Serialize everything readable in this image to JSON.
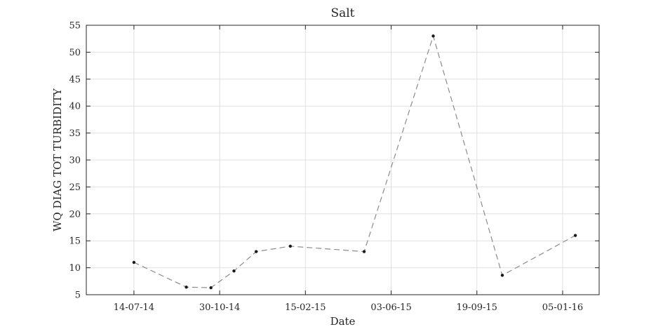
{
  "chart_data": {
    "type": "line",
    "title": "Salt",
    "xlabel": "Date",
    "ylabel": "WQ DIAG TOT TURBIDITY",
    "x_ticks": [
      "14-07-14",
      "30-10-14",
      "15-02-15",
      "03-06-15",
      "19-09-15",
      "05-01-16"
    ],
    "xlim": [
      "2014-05-15",
      "2016-02-20"
    ],
    "ylim": [
      5,
      55
    ],
    "y_ticks": [
      5,
      10,
      15,
      20,
      25,
      30,
      35,
      40,
      45,
      50,
      55
    ],
    "grid": true,
    "series": [
      {
        "line_style": "dashed",
        "line_color": "#8c8c8c",
        "marker_color": "#1a1a1a",
        "points": [
          {
            "x": "2014-07-14",
            "y": 11
          },
          {
            "x": "2014-09-18",
            "y": 6.4
          },
          {
            "x": "2014-10-19",
            "y": 6.3
          },
          {
            "x": "2014-11-17",
            "y": 9.4
          },
          {
            "x": "2014-12-15",
            "y": 13
          },
          {
            "x": "2015-01-27",
            "y": 14
          },
          {
            "x": "2015-04-30",
            "y": 13
          },
          {
            "x": "2015-07-26",
            "y": 53
          },
          {
            "x": "2015-10-21",
            "y": 8.6
          },
          {
            "x": "2016-01-21",
            "y": 16
          }
        ]
      }
    ]
  }
}
